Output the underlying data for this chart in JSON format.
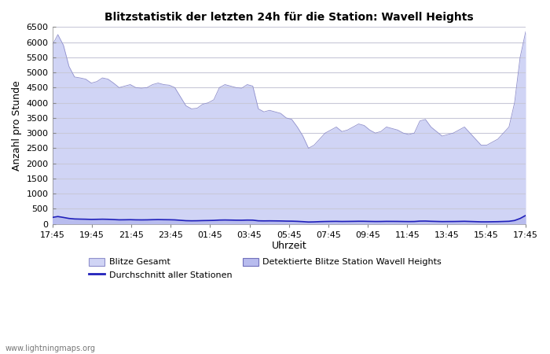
{
  "title": "Blitzstatistik der letzten 24h für die Station: Wavell Heights",
  "xlabel": "Uhrzeit",
  "ylabel": "Anzahl pro Stunde",
  "ylim": [
    0,
    6500
  ],
  "yticks": [
    0,
    500,
    1000,
    1500,
    2000,
    2500,
    3000,
    3500,
    4000,
    4500,
    5000,
    5500,
    6000,
    6500
  ],
  "x_labels": [
    "17:45",
    "19:45",
    "21:45",
    "23:45",
    "01:45",
    "03:45",
    "05:45",
    "07:45",
    "09:45",
    "11:45",
    "13:45",
    "15:45",
    "17:45"
  ],
  "background_color": "#ffffff",
  "plot_bg_color": "#ffffff",
  "grid_color": "#c8c8d8",
  "blitze_gesamt_color": "#d0d4f5",
  "blitze_gesamt_edge": "#9090cc",
  "detektierte_color": "#b8bcee",
  "detektierte_edge": "#7070bb",
  "durchschnitt_color": "#2020bb",
  "watermark": "www.lightningmaps.org",
  "legend_entries": [
    "Blitze Gesamt",
    "Durchschnitt aller Stationen",
    "Detektierte Blitze Station Wavell Heights"
  ],
  "blitze_gesamt": [
    5900,
    6250,
    5900,
    5200,
    4850,
    4820,
    4780,
    4650,
    4700,
    4820,
    4780,
    4650,
    4500,
    4550,
    4600,
    4500,
    4480,
    4500,
    4600,
    4650,
    4600,
    4580,
    4500,
    4200,
    3900,
    3800,
    3820,
    3950,
    4000,
    4100,
    4500,
    4600,
    4550,
    4500,
    4480,
    4600,
    4550,
    3800,
    3700,
    3750,
    3700,
    3650,
    3500,
    3450,
    3200,
    2900,
    2500,
    2600,
    2800,
    3000,
    3100,
    3200,
    3050,
    3100,
    3200,
    3300,
    3250,
    3100,
    3000,
    3050,
    3200,
    3150,
    3100,
    3000,
    2950,
    3000,
    3400,
    3450,
    3200,
    3050,
    2900,
    2950,
    3000,
    3100,
    3200,
    3000,
    2800,
    2600,
    2600,
    2700,
    2800,
    3000,
    3200,
    4000,
    5500,
    6350
  ],
  "detektierte_blitze": [
    200,
    240,
    220,
    190,
    170,
    165,
    160,
    155,
    158,
    162,
    158,
    150,
    140,
    142,
    145,
    140,
    138,
    140,
    145,
    148,
    145,
    143,
    138,
    125,
    112,
    108,
    110,
    115,
    118,
    122,
    132,
    135,
    132,
    128,
    127,
    132,
    130,
    108,
    105,
    107,
    105,
    103,
    98,
    96,
    90,
    80,
    68,
    72,
    80,
    85,
    88,
    90,
    86,
    88,
    90,
    93,
    92,
    88,
    85,
    86,
    90,
    89,
    88,
    85,
    83,
    85,
    98,
    100,
    92,
    87,
    82,
    84,
    85,
    88,
    92,
    86,
    80,
    74,
    74,
    77,
    80,
    86,
    92,
    118,
    185,
    285
  ],
  "durchschnitt": [
    215,
    245,
    215,
    182,
    165,
    160,
    156,
    150,
    153,
    157,
    153,
    145,
    136,
    138,
    141,
    136,
    134,
    136,
    141,
    144,
    141,
    139,
    134,
    121,
    108,
    104,
    106,
    111,
    114,
    118,
    128,
    131,
    128,
    124,
    123,
    128,
    126,
    104,
    101,
    103,
    101,
    99,
    94,
    92,
    86,
    76,
    64,
    68,
    76,
    81,
    84,
    86,
    82,
    84,
    86,
    89,
    88,
    84,
    81,
    82,
    86,
    85,
    84,
    81,
    79,
    81,
    94,
    96,
    88,
    83,
    78,
    80,
    81,
    84,
    88,
    82,
    76,
    70,
    70,
    73,
    76,
    82,
    88,
    114,
    181,
    281
  ]
}
